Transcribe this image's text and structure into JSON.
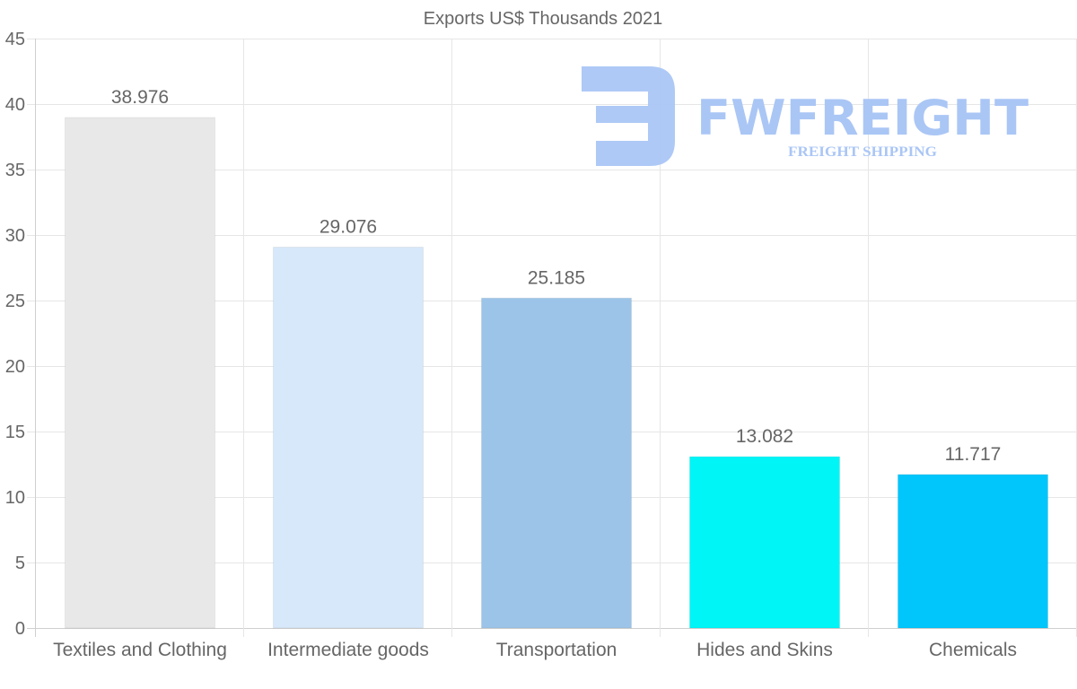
{
  "chart_data": {
    "type": "bar",
    "title": "Exports US$ Thousands 2021",
    "categories": [
      "Textiles and Clothing",
      "Intermediate goods",
      "Transportation",
      "Hides and Skins",
      "Chemicals"
    ],
    "values": [
      38.976,
      29.076,
      25.185,
      13.082,
      11.717
    ],
    "value_labels": [
      "38.976",
      "29.076",
      "25.185",
      "13.082",
      "11.717"
    ],
    "bar_colors": [
      "#e8e8e8",
      "#d6e8fa",
      "#9cc4e8",
      "#00f5f7",
      "#00c6fb"
    ],
    "ylim": [
      0,
      45
    ],
    "yticks": [
      "0",
      "5",
      "10",
      "15",
      "20",
      "25",
      "30",
      "35",
      "40",
      "45"
    ],
    "grid": true,
    "xlabel": "",
    "ylabel": ""
  },
  "watermark": {
    "brand": "FWFREIGHT",
    "tagline": "FREIGHT SHIPPING",
    "color": "#aac6f5"
  },
  "colors": {
    "grid": "#e6e6e6",
    "axis": "#cfcfcf",
    "text": "#666666"
  }
}
